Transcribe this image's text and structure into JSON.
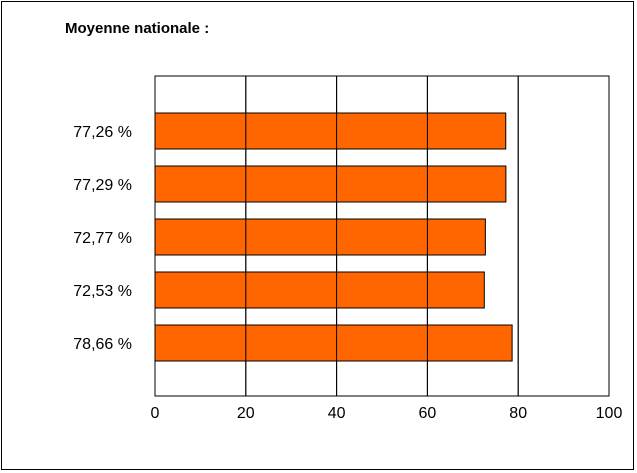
{
  "chart_data": {
    "type": "bar",
    "orientation": "horizontal",
    "title": "Moyenne nationale :",
    "categories": [
      "77,26 %",
      "77,29 %",
      "72,77 %",
      "72,53 %",
      "78,66 %"
    ],
    "values": [
      77.26,
      77.29,
      72.77,
      72.53,
      78.66
    ],
    "xlabel": "",
    "ylabel": "",
    "xlim": [
      0,
      100
    ],
    "xticks": [
      0,
      20,
      40,
      60,
      80,
      100
    ],
    "grid": true,
    "bar_color": "#ff6600",
    "bar_outline": "#000000"
  }
}
